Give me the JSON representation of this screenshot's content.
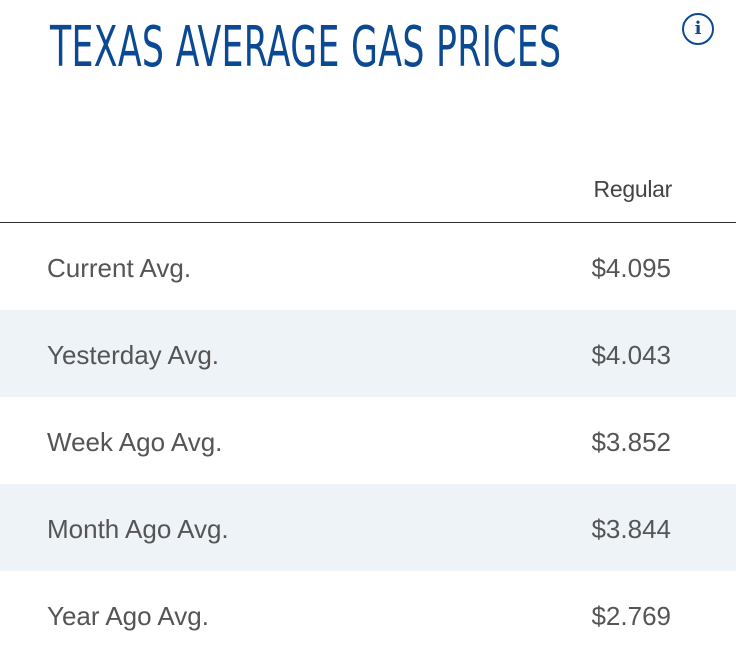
{
  "header": {
    "title": "TEXAS AVERAGE GAS PRICES",
    "info_icon": "info-icon"
  },
  "table": {
    "columns": [
      "Regular"
    ],
    "rows": [
      {
        "label": "Current Avg.",
        "regular": "$4.095"
      },
      {
        "label": "Yesterday Avg.",
        "regular": "$4.043"
      },
      {
        "label": "Week Ago Avg.",
        "regular": "$3.852"
      },
      {
        "label": "Month Ago Avg.",
        "regular": "$3.844"
      },
      {
        "label": "Year Ago Avg.",
        "regular": "$2.769"
      }
    ]
  },
  "colors": {
    "title": "#0b4a92",
    "row_alt_background": "#eef3f8",
    "text": "#555555"
  }
}
